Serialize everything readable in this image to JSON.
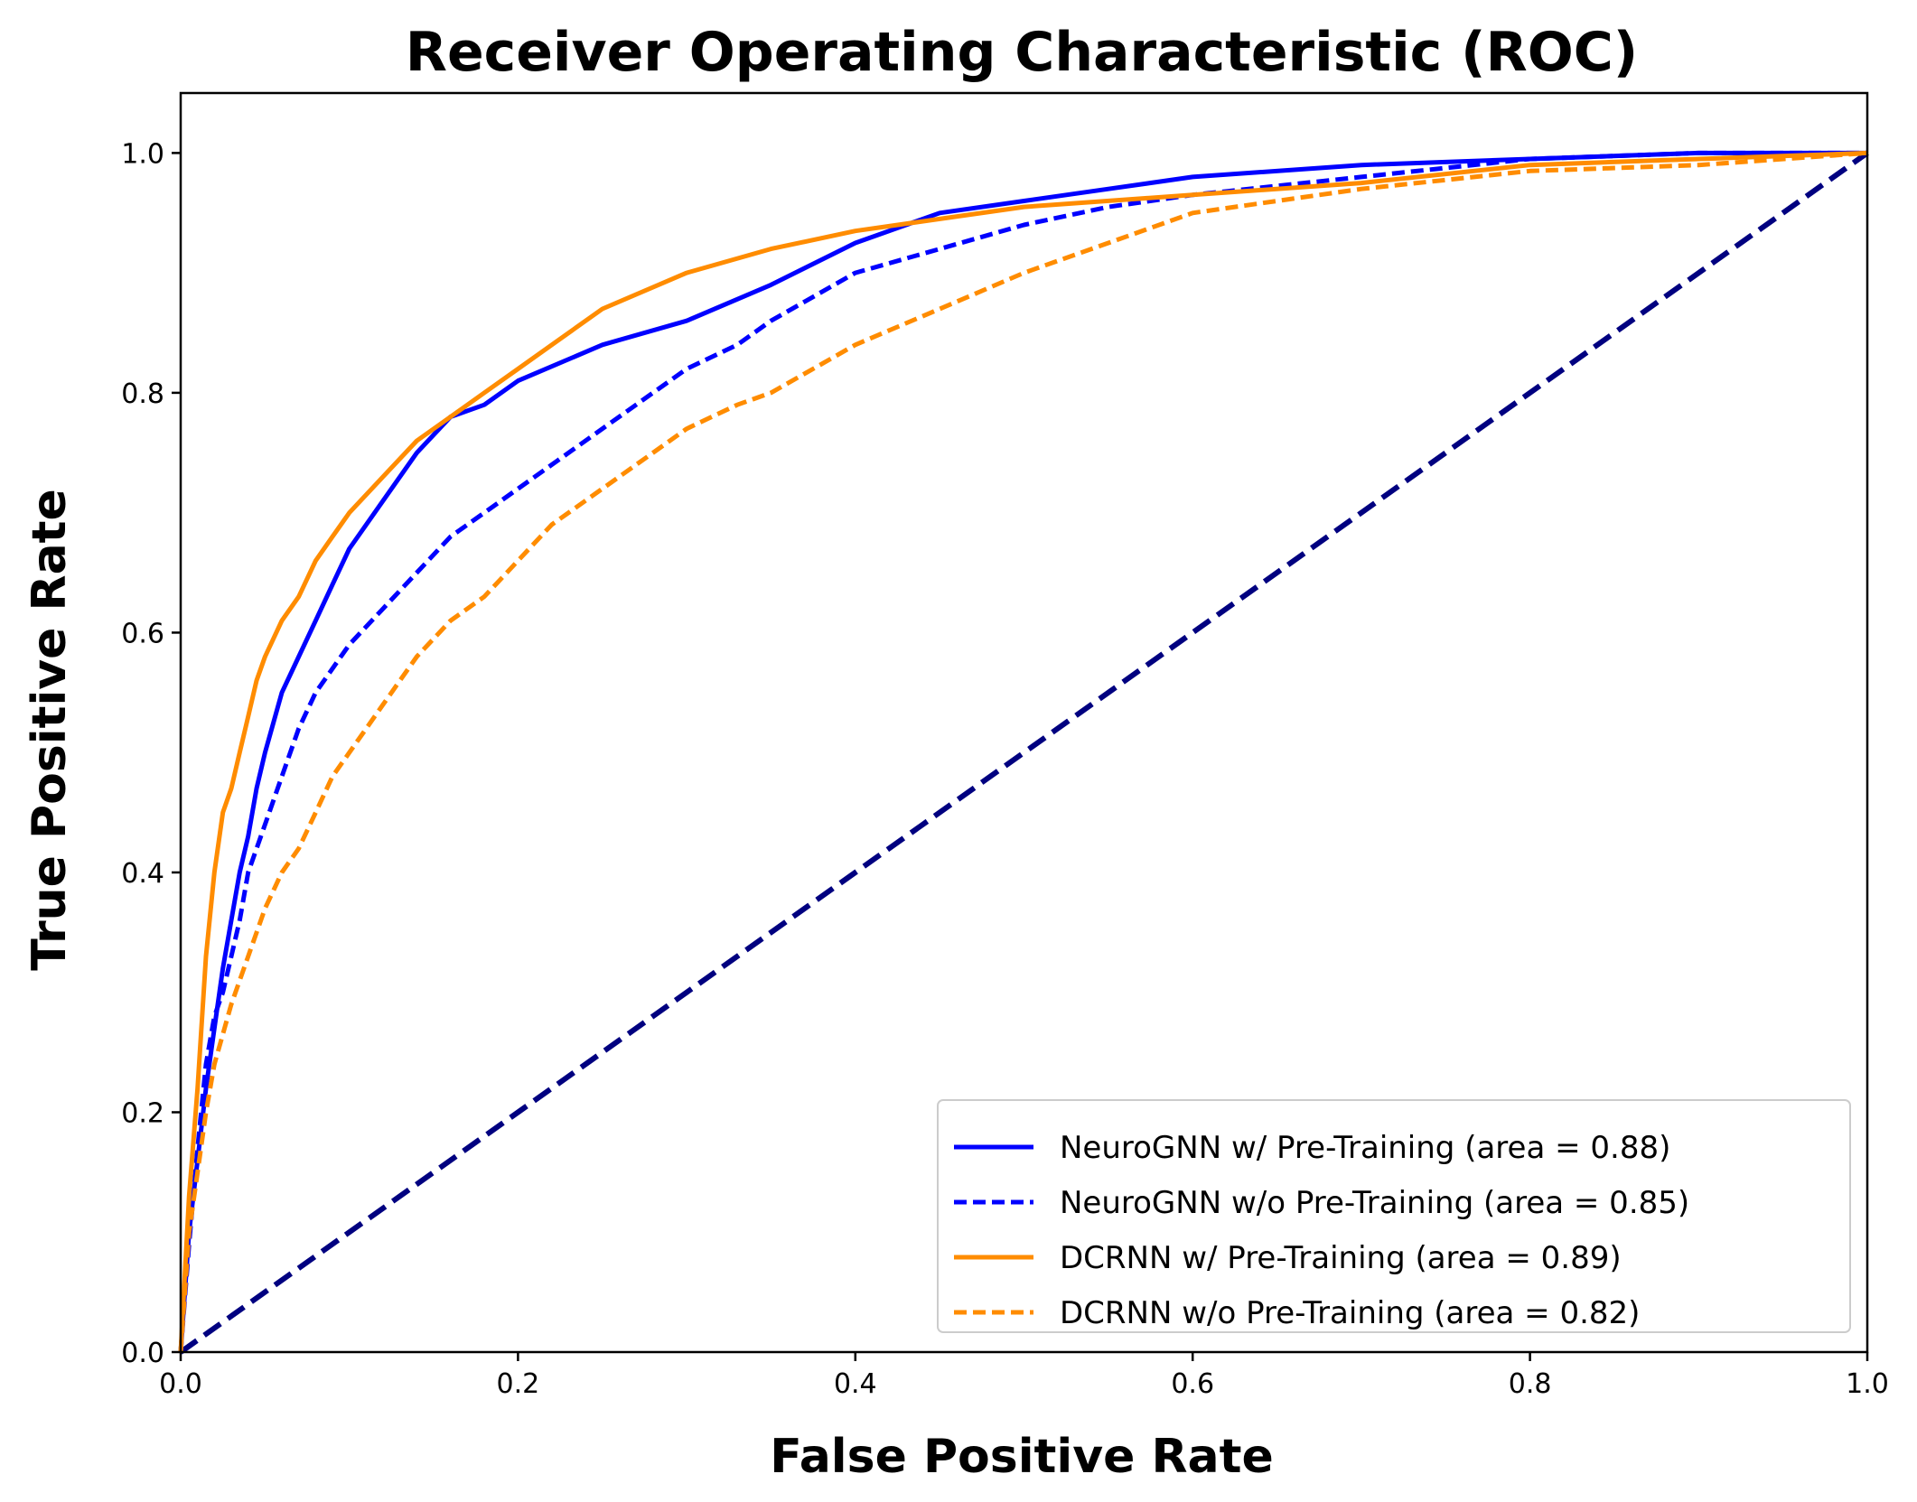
{
  "chart_data": {
    "type": "line",
    "title": "Receiver Operating Characteristic (ROC)",
    "xlabel": "False Positive Rate",
    "ylabel": "True Positive Rate",
    "xlim": [
      0.0,
      1.0
    ],
    "ylim": [
      0.0,
      1.05
    ],
    "xticks": [
      "0.0",
      "0.2",
      "0.4",
      "0.6",
      "0.8",
      "1.0"
    ],
    "yticks": [
      "0.0",
      "0.2",
      "0.4",
      "0.6",
      "0.8",
      "1.0"
    ],
    "grid": false,
    "legend_position": "lower-right",
    "series": [
      {
        "name": "NeuroGNN w/ Pre-Training (area = 0.88)",
        "color": "#0000ff",
        "dash": "solid",
        "x": [
          0.0,
          0.005,
          0.01,
          0.015,
          0.02,
          0.025,
          0.03,
          0.035,
          0.04,
          0.045,
          0.05,
          0.06,
          0.07,
          0.08,
          0.09,
          0.1,
          0.12,
          0.14,
          0.16,
          0.18,
          0.2,
          0.25,
          0.3,
          0.35,
          0.4,
          0.45,
          0.5,
          0.55,
          0.6,
          0.7,
          0.8,
          0.9,
          1.0
        ],
        "y": [
          0.0,
          0.1,
          0.16,
          0.22,
          0.27,
          0.32,
          0.36,
          0.4,
          0.43,
          0.47,
          0.5,
          0.55,
          0.58,
          0.61,
          0.64,
          0.67,
          0.71,
          0.75,
          0.78,
          0.79,
          0.81,
          0.84,
          0.86,
          0.89,
          0.925,
          0.95,
          0.96,
          0.97,
          0.98,
          0.99,
          0.995,
          1.0,
          1.0
        ]
      },
      {
        "name": "NeuroGNN w/o Pre-Training (area = 0.85)",
        "color": "#0000ff",
        "dash": "dashed",
        "x": [
          0.0,
          0.005,
          0.01,
          0.015,
          0.02,
          0.025,
          0.03,
          0.035,
          0.04,
          0.05,
          0.06,
          0.07,
          0.08,
          0.09,
          0.1,
          0.12,
          0.14,
          0.16,
          0.18,
          0.2,
          0.22,
          0.25,
          0.28,
          0.3,
          0.33,
          0.35,
          0.4,
          0.45,
          0.5,
          0.55,
          0.6,
          0.7,
          0.8,
          0.9,
          1.0
        ],
        "y": [
          0.0,
          0.09,
          0.17,
          0.24,
          0.28,
          0.3,
          0.33,
          0.36,
          0.4,
          0.44,
          0.48,
          0.52,
          0.55,
          0.57,
          0.59,
          0.62,
          0.65,
          0.68,
          0.7,
          0.72,
          0.74,
          0.77,
          0.8,
          0.82,
          0.84,
          0.86,
          0.9,
          0.92,
          0.94,
          0.955,
          0.965,
          0.98,
          0.995,
          1.0,
          1.0
        ]
      },
      {
        "name": "DCRNN w/ Pre-Training (area = 0.89)",
        "color": "#ff8c00",
        "dash": "solid",
        "x": [
          0.0,
          0.005,
          0.01,
          0.015,
          0.02,
          0.025,
          0.03,
          0.035,
          0.04,
          0.045,
          0.05,
          0.06,
          0.07,
          0.08,
          0.09,
          0.1,
          0.12,
          0.14,
          0.16,
          0.18,
          0.2,
          0.25,
          0.3,
          0.35,
          0.4,
          0.45,
          0.5,
          0.6,
          0.7,
          0.8,
          0.9,
          1.0
        ],
        "y": [
          0.0,
          0.13,
          0.22,
          0.33,
          0.4,
          0.45,
          0.47,
          0.5,
          0.53,
          0.56,
          0.58,
          0.61,
          0.63,
          0.66,
          0.68,
          0.7,
          0.73,
          0.76,
          0.78,
          0.8,
          0.82,
          0.87,
          0.9,
          0.92,
          0.935,
          0.945,
          0.955,
          0.965,
          0.975,
          0.99,
          0.995,
          1.0
        ]
      },
      {
        "name": "DCRNN w/o Pre-Training (area = 0.82)",
        "color": "#ff8c00",
        "dash": "dashed",
        "x": [
          0.0,
          0.005,
          0.01,
          0.015,
          0.02,
          0.03,
          0.04,
          0.05,
          0.06,
          0.07,
          0.08,
          0.09,
          0.1,
          0.12,
          0.14,
          0.16,
          0.18,
          0.2,
          0.22,
          0.25,
          0.28,
          0.3,
          0.33,
          0.35,
          0.4,
          0.45,
          0.5,
          0.55,
          0.6,
          0.7,
          0.8,
          0.9,
          1.0
        ],
        "y": [
          0.0,
          0.1,
          0.15,
          0.2,
          0.24,
          0.29,
          0.33,
          0.37,
          0.4,
          0.42,
          0.45,
          0.48,
          0.5,
          0.54,
          0.58,
          0.61,
          0.63,
          0.66,
          0.69,
          0.72,
          0.75,
          0.77,
          0.79,
          0.8,
          0.84,
          0.87,
          0.9,
          0.925,
          0.95,
          0.97,
          0.985,
          0.99,
          1.0
        ]
      }
    ],
    "reference_line": {
      "x": [
        0.0,
        1.0
      ],
      "y": [
        0.0,
        1.0
      ],
      "color": "#000080",
      "dash": "dashed"
    }
  }
}
